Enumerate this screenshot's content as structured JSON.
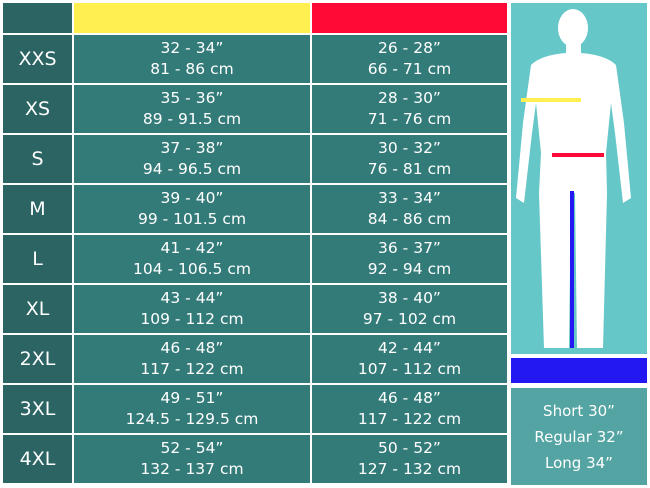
{
  "colors": {
    "chest": "#ffef50",
    "waist": "#ff0a37",
    "inseam": "#2318f2"
  },
  "rows": [
    {
      "size": "XXS",
      "chest_in": "32 - 34”",
      "chest_cm": "81 - 86 cm",
      "waist_in": "26 - 28”",
      "waist_cm": "66 - 71 cm"
    },
    {
      "size": "XS",
      "chest_in": "35 - 36”",
      "chest_cm": "89 - 91.5 cm",
      "waist_in": "28 - 30”",
      "waist_cm": "71 - 76 cm"
    },
    {
      "size": "S",
      "chest_in": "37 - 38”",
      "chest_cm": "94 - 96.5 cm",
      "waist_in": "30 - 32”",
      "waist_cm": "76 - 81 cm"
    },
    {
      "size": "M",
      "chest_in": "39 - 40”",
      "chest_cm": "99 - 101.5 cm",
      "waist_in": "33 - 34”",
      "waist_cm": "84 - 86 cm"
    },
    {
      "size": "L",
      "chest_in": "41 - 42”",
      "chest_cm": "104 - 106.5 cm",
      "waist_in": "36 - 37”",
      "waist_cm": "92 - 94 cm"
    },
    {
      "size": "XL",
      "chest_in": "43 - 44”",
      "chest_cm": "109 - 112 cm",
      "waist_in": "38 - 40”",
      "waist_cm": "97 - 102 cm"
    },
    {
      "size": "2XL",
      "chest_in": "46 - 48”",
      "chest_cm": "117 - 122 cm",
      "waist_in": "42 - 44”",
      "waist_cm": "107 - 112 cm"
    },
    {
      "size": "3XL",
      "chest_in": "49 - 51”",
      "chest_cm": "124.5 - 129.5 cm",
      "waist_in": "46 - 48”",
      "waist_cm": "117 - 122 cm"
    },
    {
      "size": "4XL",
      "chest_in": "52 - 54”",
      "chest_cm": "132 - 137 cm",
      "waist_in": "50 - 52”",
      "waist_cm": "127 - 132 cm"
    }
  ],
  "lengths": [
    "Short 30”",
    "Regular 32”",
    "Long 34”"
  ]
}
